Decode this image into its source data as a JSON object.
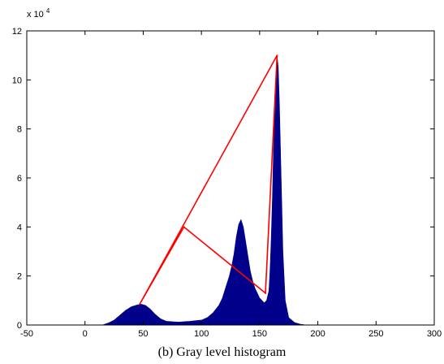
{
  "chart_data": {
    "type": "area",
    "title": "",
    "xlabel": "",
    "ylabel": "",
    "caption": "(b) Gray level histogram",
    "y_exponent_base": "x 10",
    "y_exponent_power": "4",
    "xlim": [
      -50,
      300
    ],
    "ylim": [
      0,
      12
    ],
    "xticks": [
      -50,
      0,
      50,
      100,
      150,
      200,
      250,
      300
    ],
    "yticks": [
      0,
      2,
      4,
      6,
      8,
      10,
      12
    ],
    "grid": false,
    "legend": "none",
    "colors": {
      "histogram": "#00008b",
      "triangle": "#ff0000",
      "axes": "#000000"
    },
    "series": [
      {
        "type": "area",
        "x": [
          15,
          20,
          25,
          30,
          35,
          40,
          45,
          48,
          52,
          56,
          60,
          65,
          70,
          80,
          90,
          100,
          105,
          110,
          115,
          118,
          120,
          122,
          124,
          126,
          128,
          130,
          132,
          134,
          136,
          138,
          140,
          142,
          144,
          146,
          148,
          150,
          152,
          154,
          156,
          158,
          159,
          160,
          161,
          162,
          163,
          164,
          165,
          166,
          167,
          168,
          169,
          170,
          172,
          175,
          180,
          185,
          190
        ],
        "values": [
          0.0,
          0.08,
          0.2,
          0.4,
          0.6,
          0.75,
          0.82,
          0.85,
          0.8,
          0.65,
          0.45,
          0.25,
          0.15,
          0.12,
          0.15,
          0.2,
          0.3,
          0.5,
          0.8,
          1.1,
          1.4,
          1.7,
          2.0,
          2.4,
          2.9,
          3.6,
          4.1,
          4.3,
          4.0,
          3.4,
          2.8,
          2.2,
          1.8,
          1.5,
          1.3,
          1.1,
          1.0,
          0.9,
          1.0,
          1.4,
          2.3,
          3.6,
          5.2,
          7.3,
          9.0,
          10.2,
          11.0,
          10.5,
          9.0,
          7.0,
          5.0,
          3.0,
          1.0,
          0.3,
          0.1,
          0.03,
          0.0
        ]
      },
      {
        "type": "line",
        "x": [
          47,
          165,
          155,
          85,
          47
        ],
        "values": [
          0.85,
          11.0,
          1.3,
          4.0,
          0.85
        ]
      }
    ]
  }
}
